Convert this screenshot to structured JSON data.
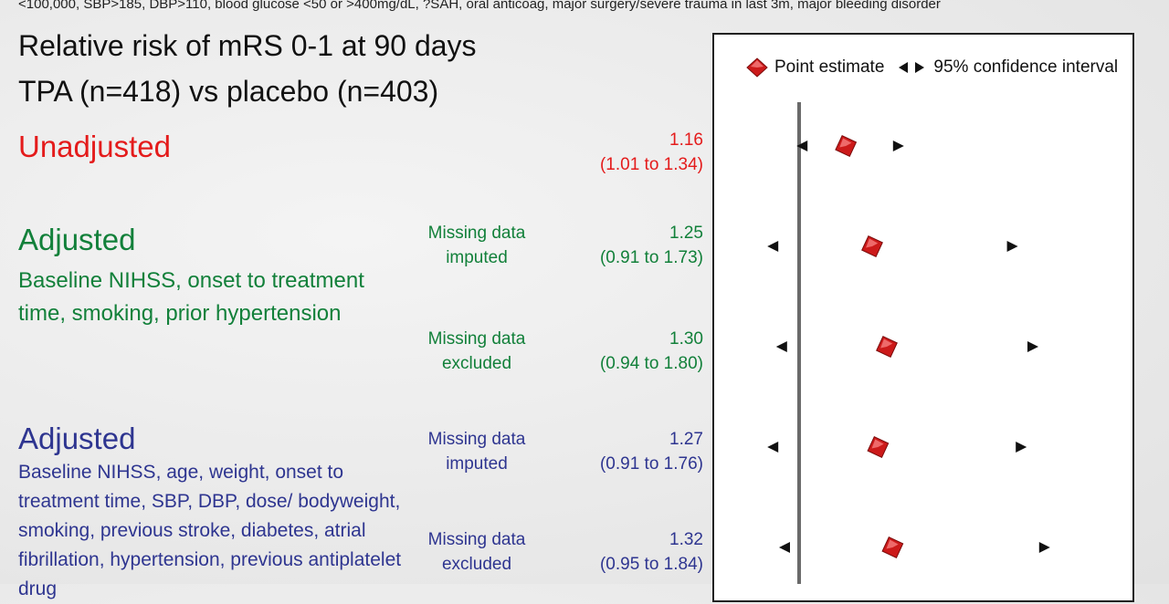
{
  "top_note": "<100,000, SBP>185, DBP>110, blood glucose <50 or >400mg/dL, ?SAH, oral anticoag, major surgery/severe trauma in last 3m, major bleeding disorder",
  "title_line1": "Relative risk of mRS 0-1 at 90 days",
  "title_line2": "TPA (n=418) vs placebo (n=403)",
  "sections": {
    "unadjusted": {
      "heading": "Unadjusted"
    },
    "adjusted_a": {
      "heading": "Adjusted",
      "description": "Baseline NIHSS, onset to treatment time, smoking, prior hypertension"
    },
    "adjusted_b": {
      "heading": "Adjusted",
      "description": "Baseline NIHSS, age, weight, onset to treatment time, SBP, DBP, dose/ bodyweight, smoking, previous stroke, diabetes, atrial fibrillation, hypertension, previous antiplatelet drug"
    }
  },
  "legend": {
    "point_label": "Point estimate",
    "ci_label": "95% confidence interval",
    "point_icon": "red-diamond-icon",
    "ci_icon": "triangle-arrows-icon"
  },
  "colors": {
    "unadjusted": "#e41b1b",
    "adjusted_a": "#12803a",
    "adjusted_b": "#2e3590",
    "marker": "#cc1a1a"
  },
  "chart_data": {
    "type": "forest",
    "title": "Relative risk of mRS 0-1 at 90 days",
    "subtitle": "TPA (n=418) vs placebo (n=403)",
    "reference_line": 1.0,
    "rows": [
      {
        "group": "Unadjusted",
        "missing_line1": "",
        "missing_line2": "",
        "estimate": 1.16,
        "lower": 1.01,
        "upper": 1.34,
        "estimate_label": "1.16",
        "ci_label": "(1.01 to 1.34)"
      },
      {
        "group": "Adjusted",
        "missing_line1": "Missing data",
        "missing_line2": "imputed",
        "estimate": 1.25,
        "lower": 0.91,
        "upper": 1.73,
        "estimate_label": "1.25",
        "ci_label": "(0.91 to 1.73)"
      },
      {
        "group": "Adjusted",
        "missing_line1": "Missing data",
        "missing_line2": "excluded",
        "estimate": 1.3,
        "lower": 0.94,
        "upper": 1.8,
        "estimate_label": "1.30",
        "ci_label": "(0.94 to 1.80)"
      },
      {
        "group": "Adjusted",
        "missing_line1": "Missing data",
        "missing_line2": "imputed",
        "estimate": 1.27,
        "lower": 0.91,
        "upper": 1.76,
        "estimate_label": "1.27",
        "ci_label": "(0.91 to 1.76)"
      },
      {
        "group": "Adjusted",
        "missing_line1": "Missing data",
        "missing_line2": "excluded",
        "estimate": 1.32,
        "lower": 0.95,
        "upper": 1.84,
        "estimate_label": "1.32",
        "ci_label": "(0.95 to 1.84)"
      }
    ]
  }
}
